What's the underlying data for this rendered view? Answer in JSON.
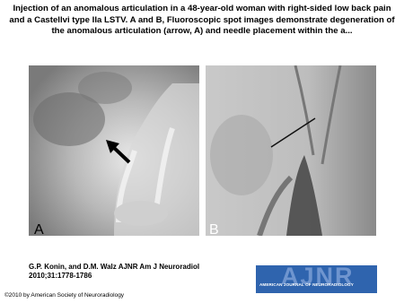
{
  "header": {
    "title": "Injection of an anomalous articulation in a 48-year-old woman with right-sided low back pain and a Castellvi type IIa LSTV. A and B, Fluoroscopic spot images demonstrate degeneration of the anomalous articulation (arrow, A) and needle placement within the a..."
  },
  "panels": [
    {
      "label": "A"
    },
    {
      "label": "B"
    }
  ],
  "citation": {
    "line1": "G.P. Konin, and D.M. Walz AJNR Am J Neuroradiol",
    "line2": "2010;31:1778-1786"
  },
  "logo": {
    "name": "AJNR",
    "subtitle": "AMERICAN JOURNAL OF NEURORADIOLOGY"
  },
  "footer": {
    "copyright": "©2010 by American Society of Neuroradiology"
  }
}
